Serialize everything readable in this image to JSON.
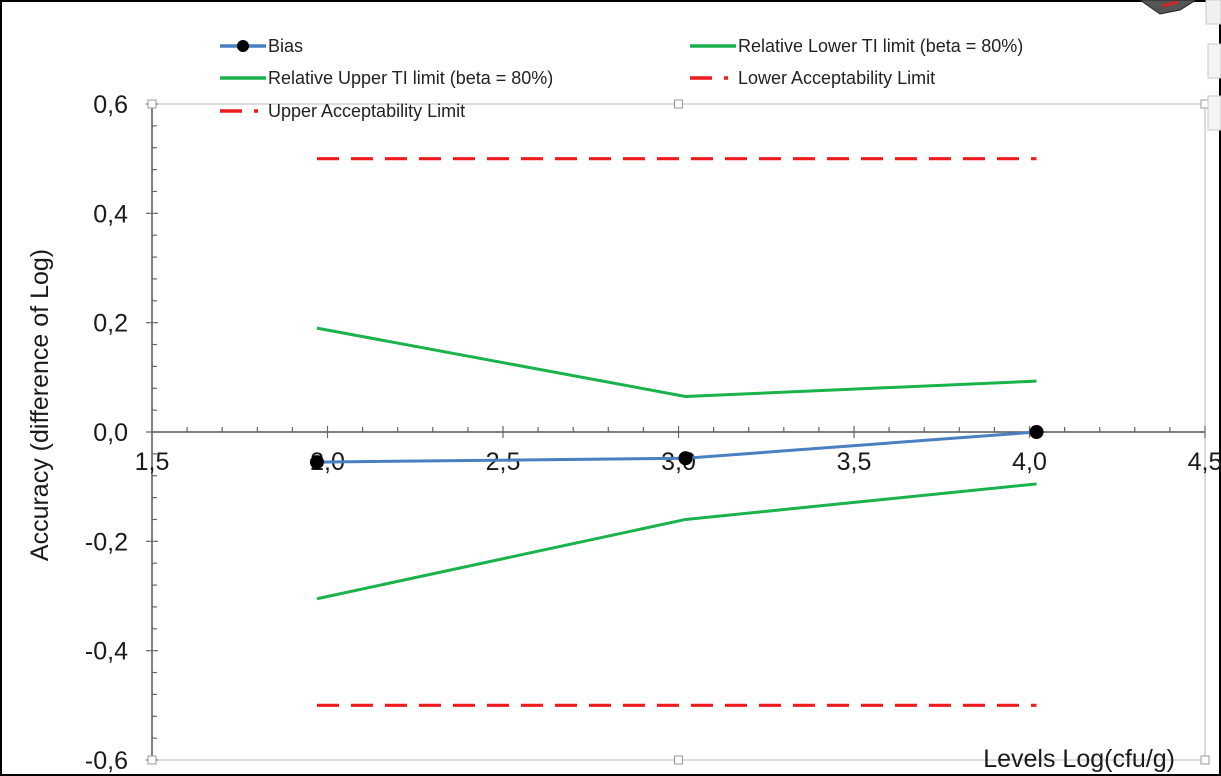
{
  "chart_data": {
    "type": "line",
    "xlabel": "Levels Log(cfu/g)",
    "ylabel": "Accuracy (difference of  Log)",
    "xlim": [
      1.5,
      4.5
    ],
    "ylim": [
      -0.6,
      0.6
    ],
    "x_ticks": [
      "1,5",
      "2,0",
      "2,5",
      "3,0",
      "3,5",
      "4,0",
      "4,5"
    ],
    "y_ticks": [
      "0,6",
      "0,4",
      "0,2",
      "0,0",
      "-0,2",
      "-0,4",
      "-0,6"
    ],
    "x_tick_values": [
      1.5,
      2.0,
      2.5,
      3.0,
      3.5,
      4.0,
      4.5
    ],
    "y_tick_values": [
      0.6,
      0.4,
      0.2,
      0.0,
      -0.2,
      -0.4,
      -0.6
    ],
    "grid": false,
    "legend_position": "top",
    "series": [
      {
        "name": "Bias",
        "color": "#4a7fc1",
        "style": "line-markers",
        "x": [
          1.97,
          3.02,
          4.02
        ],
        "y": [
          -0.055,
          -0.048,
          0.0
        ]
      },
      {
        "name": "Relative Lower TI limit (beta = 80%)",
        "color": "#19b24b",
        "style": "line",
        "x": [
          1.97,
          3.02,
          4.02
        ],
        "y": [
          -0.305,
          -0.16,
          -0.095
        ]
      },
      {
        "name": "Relative Upper TI limit (beta = 80%)",
        "color": "#19b24b",
        "style": "line",
        "x": [
          1.97,
          3.02,
          4.02
        ],
        "y": [
          0.19,
          0.065,
          0.093
        ]
      },
      {
        "name": "Lower Acceptability Limit",
        "color": "#ee1c1c",
        "style": "dashed",
        "x": [
          1.97,
          4.02
        ],
        "y": [
          -0.5,
          -0.5
        ]
      },
      {
        "name": "Upper Acceptability Limit",
        "color": "#ee1c1c",
        "style": "dashed",
        "x": [
          1.97,
          4.02
        ],
        "y": [
          0.5,
          0.5
        ]
      }
    ]
  }
}
